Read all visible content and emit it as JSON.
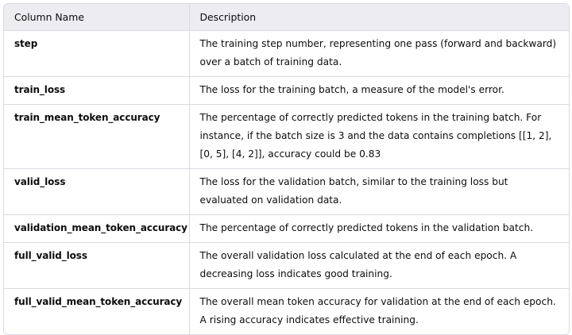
{
  "table": {
    "headers": [
      "Column Name",
      "Description"
    ],
    "rows": [
      {
        "name": "step",
        "description": "The training step number, representing one pass (forward and backward) over a batch of training data."
      },
      {
        "name": "train_loss",
        "description": "The loss for the training batch, a measure of the model's error."
      },
      {
        "name": "train_mean_token_accuracy",
        "description": "The percentage of correctly predicted tokens in the training batch. For instance, if the batch size is 3 and the data contains completions [[1, 2], [0, 5], [4, 2]], accuracy could be 0.83"
      },
      {
        "name": "valid_loss",
        "description": "The loss for the validation batch, similar to the training loss but evaluated on validation data."
      },
      {
        "name": "validation_mean_token_accuracy",
        "description": "The percentage of correctly predicted tokens in the validation batch."
      },
      {
        "name": "full_valid_loss",
        "description": "The overall validation loss calculated at the end of each epoch. A decreasing loss indicates good training."
      },
      {
        "name": "full_valid_mean_token_accuracy",
        "description": "The overall mean token accuracy for validation at the end of each epoch. A rising accuracy indicates effective training."
      }
    ]
  }
}
